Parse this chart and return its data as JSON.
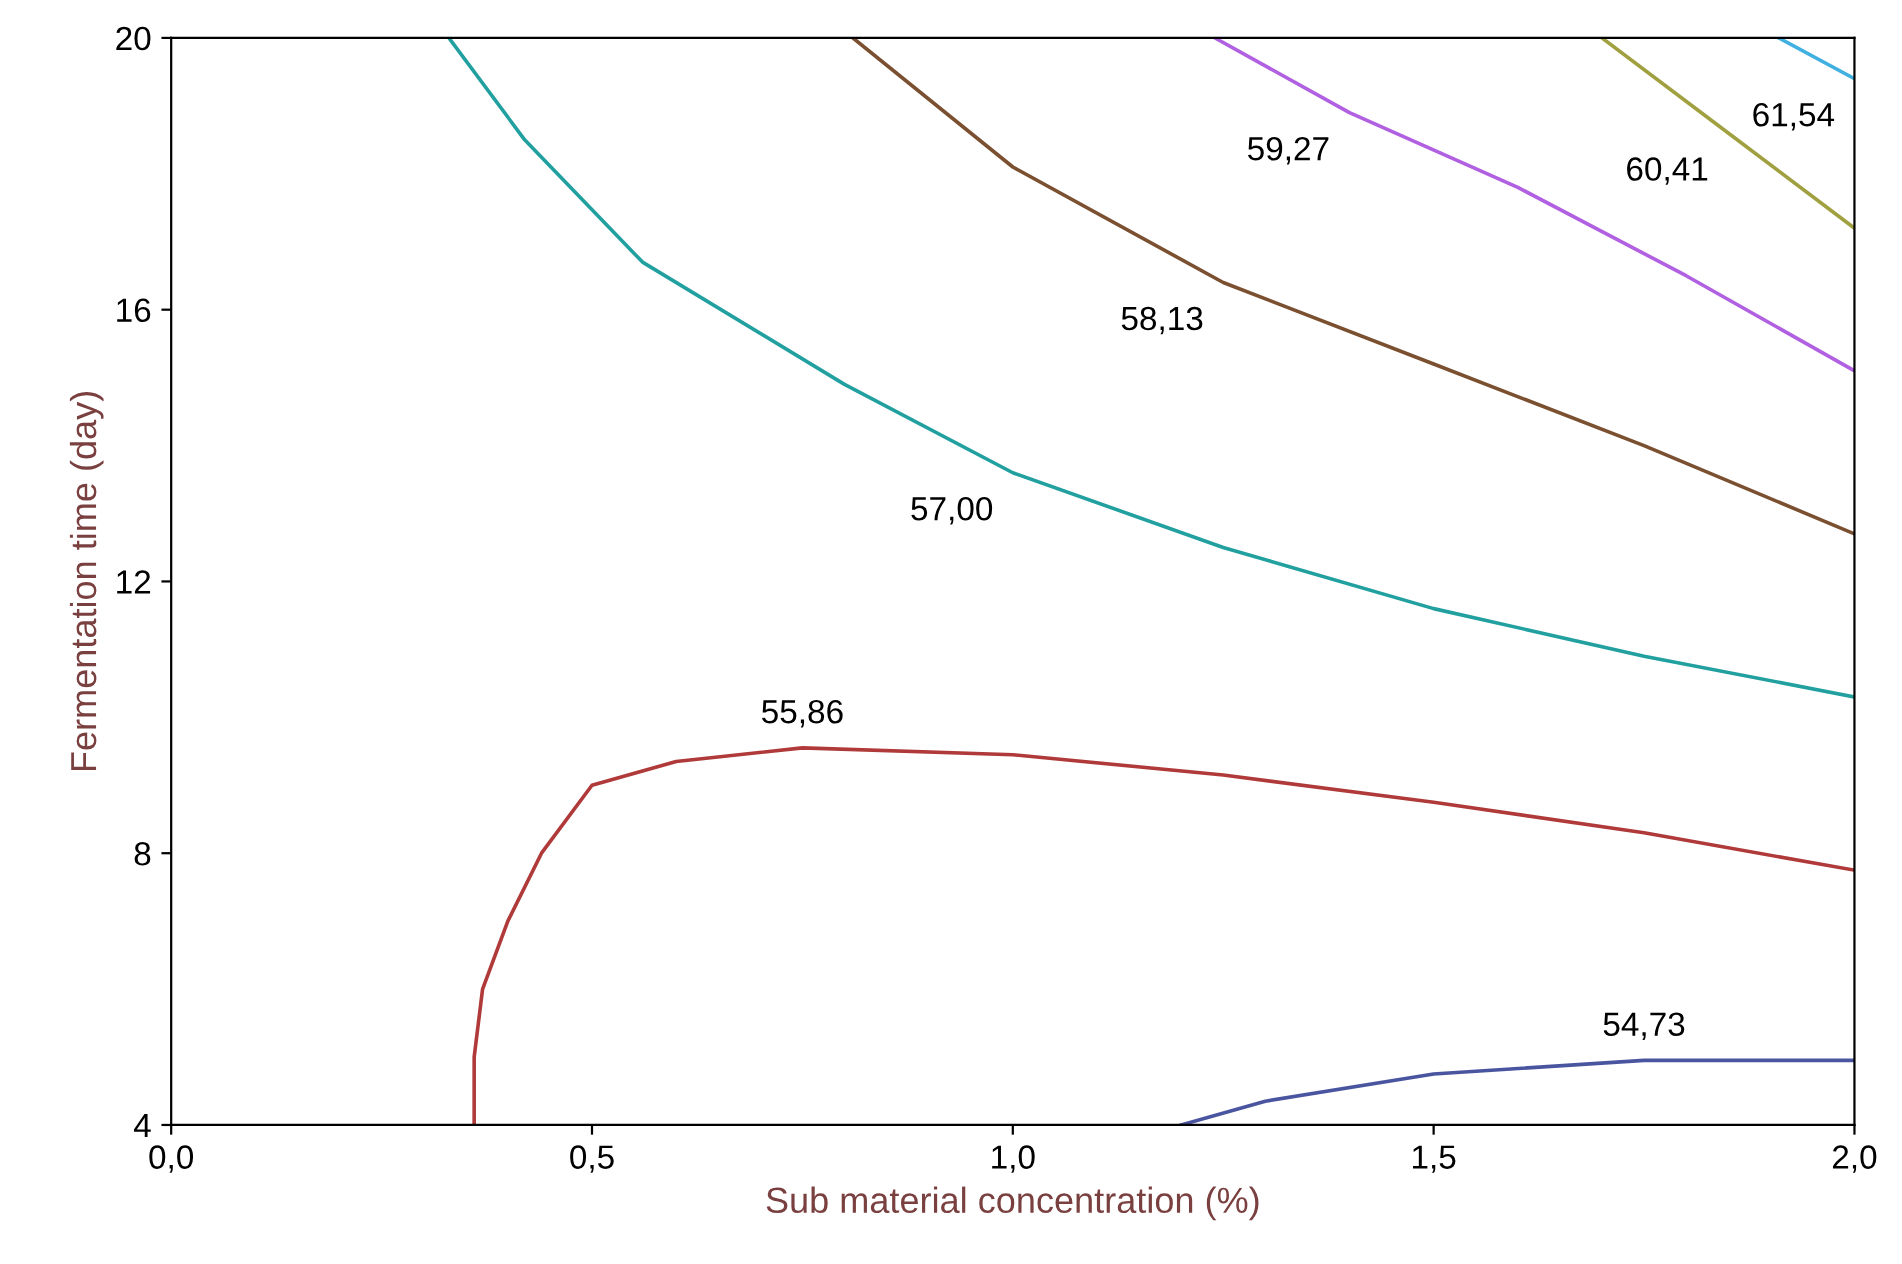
{
  "chart_data": {
    "type": "line",
    "xlabel": "Sub material concentration (%)",
    "ylabel": "Fermentation time (day)",
    "xlim": [
      0,
      2
    ],
    "ylim": [
      4,
      20
    ],
    "xticks": [
      {
        "value": 0,
        "label": "0,0"
      },
      {
        "value": 0.5,
        "label": "0,5"
      },
      {
        "value": 1,
        "label": "1,0"
      },
      {
        "value": 1.5,
        "label": "1,5"
      },
      {
        "value": 2,
        "label": "2,0"
      }
    ],
    "yticks": [
      4,
      8,
      12,
      16,
      20
    ],
    "grid": false,
    "legend": false,
    "marker": "none",
    "line_style": "solid",
    "series": [
      {
        "color": "#b03a3a",
        "x": [
          0.36,
          0.36,
          0.37,
          0.4,
          0.44,
          0.5,
          0.6,
          0.75,
          1.0,
          1.25,
          1.5,
          1.75,
          2.0
        ],
        "values": [
          4,
          5,
          6,
          7,
          8,
          9,
          9.35,
          9.55,
          9.45,
          9.15,
          8.75,
          8.3,
          7.75
        ]
      },
      {
        "color": "#4a55a0",
        "x": [
          1.2,
          1.3,
          1.5,
          1.75,
          2.0
        ],
        "values": [
          4,
          4.35,
          4.75,
          4.95,
          4.95
        ]
      },
      {
        "color": "#22a0a0",
        "x": [
          0.33,
          0.42,
          0.56,
          0.8,
          1.0,
          1.25,
          1.5,
          1.75,
          2.0
        ],
        "values": [
          20,
          18.5,
          16.7,
          14.9,
          13.6,
          12.5,
          11.6,
          10.9,
          10.3
        ]
      },
      {
        "color": "#7a5030",
        "x": [
          0.81,
          1.0,
          1.25,
          1.5,
          1.75,
          2.0
        ],
        "values": [
          20,
          18.1,
          16.4,
          15.2,
          14.0,
          12.7
        ]
      },
      {
        "color": "#b060e0",
        "x": [
          1.24,
          1.4,
          1.6,
          1.8,
          2.0
        ],
        "values": [
          20,
          18.9,
          17.8,
          16.5,
          15.1
        ]
      },
      {
        "color": "#a0a040",
        "x": [
          1.7,
          1.85,
          2.0
        ],
        "values": [
          20,
          18.6,
          17.2
        ]
      },
      {
        "color": "#40b0e0",
        "x": [
          1.91,
          2.0
        ],
        "values": [
          20,
          19.4
        ]
      }
    ],
    "annotations": [
      {
        "text": "55,86",
        "x": 0.75,
        "y": 9.55
      },
      {
        "text": "54,73",
        "x": 1.75,
        "y": 4.95
      },
      {
        "text": "57,00",
        "x": 1.0,
        "y": 13.6
      },
      {
        "text": "58,13",
        "x": 1.25,
        "y": 16.4
      },
      {
        "text": "59,27",
        "x": 1.4,
        "y": 18.9
      },
      {
        "text": "60,41",
        "x": 1.85,
        "y": 18.6
      },
      {
        "text": "61,54",
        "x": 2.0,
        "y": 19.4
      }
    ]
  }
}
